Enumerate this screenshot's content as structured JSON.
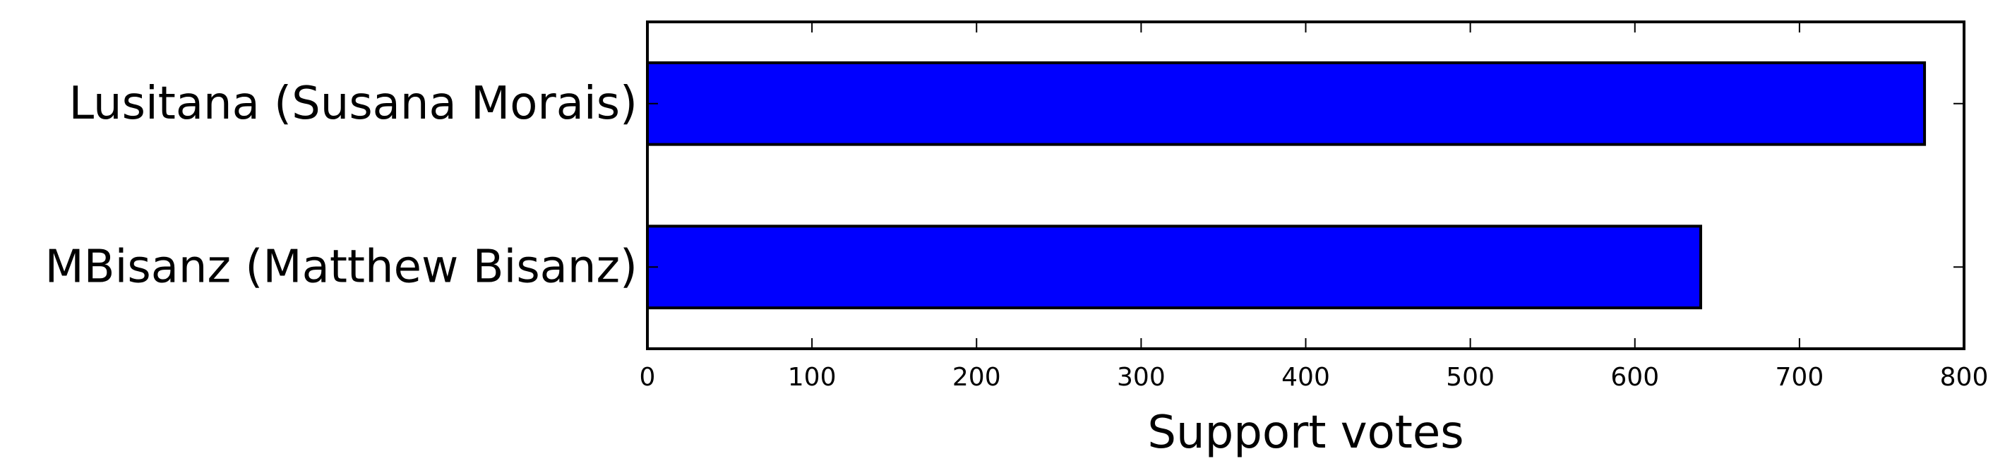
{
  "chart_data": {
    "type": "bar",
    "orientation": "horizontal",
    "categories": [
      "Lusitana (Susana Morais)",
      "MBisanz (Matthew Bisanz)"
    ],
    "values": [
      776,
      640
    ],
    "xlabel": "Support votes",
    "ylabel": "",
    "xlim": [
      0,
      800
    ],
    "xticks": [
      "0",
      "100",
      "200",
      "300",
      "400",
      "500",
      "600",
      "700",
      "800"
    ],
    "grid": false,
    "bar_color": "#0000ff",
    "edge_color": "#000000"
  }
}
